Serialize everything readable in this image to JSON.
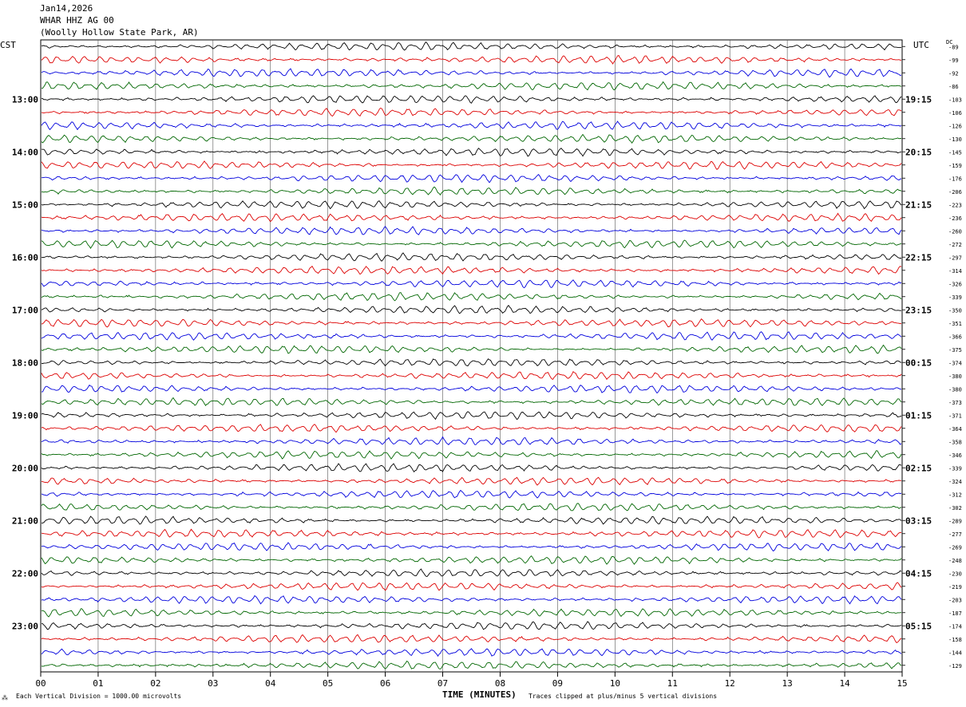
{
  "header": {
    "date": "Jan14,2026",
    "station": "WHAR HHZ AG 00",
    "location": "(Woolly Hollow State Park, AR)"
  },
  "axes": {
    "left_label": "CST",
    "right_label": "UTC",
    "dc_label": "DC",
    "xlabel": "TIME (MINUTES)"
  },
  "footer": {
    "scale_note": "Each Vertical Division = 1000.00 microvolts",
    "clip_note": "Traces clipped at plus/minus 5 vertical divisions"
  },
  "chart_data": {
    "type": "line",
    "title": "WHAR HHZ AG 00",
    "xlabel": "TIME (MINUTES)",
    "x_ticks": [
      "00",
      "01",
      "02",
      "03",
      "04",
      "05",
      "06",
      "07",
      "08",
      "09",
      "10",
      "11",
      "12",
      "13",
      "14",
      "15"
    ],
    "xlim": [
      0,
      15
    ],
    "trace_minutes": 15,
    "trace_colors": [
      "#000000",
      "#dd0000",
      "#0000dd",
      "#006600"
    ],
    "left_time_labels": [
      {
        "row": 4,
        "label": "13:00"
      },
      {
        "row": 8,
        "label": "14:00"
      },
      {
        "row": 12,
        "label": "15:00"
      },
      {
        "row": 16,
        "label": "16:00"
      },
      {
        "row": 20,
        "label": "17:00"
      },
      {
        "row": 24,
        "label": "18:00"
      },
      {
        "row": 28,
        "label": "19:00"
      },
      {
        "row": 32,
        "label": "20:00"
      },
      {
        "row": 36,
        "label": "21:00"
      },
      {
        "row": 40,
        "label": "22:00"
      },
      {
        "row": 44,
        "label": "23:00"
      }
    ],
    "right_time_labels": [
      {
        "row": 4,
        "label": "19:15"
      },
      {
        "row": 8,
        "label": "20:15"
      },
      {
        "row": 12,
        "label": "21:15"
      },
      {
        "row": 16,
        "label": "22:15"
      },
      {
        "row": 20,
        "label": "23:15"
      },
      {
        "row": 24,
        "label": "00:15"
      },
      {
        "row": 28,
        "label": "01:15"
      },
      {
        "row": 32,
        "label": "02:15"
      },
      {
        "row": 36,
        "label": "03:15"
      },
      {
        "row": 40,
        "label": "04:15"
      },
      {
        "row": 44,
        "label": "05:15"
      }
    ],
    "dc_offsets": [
      "-89",
      "-99",
      "-92",
      "-86",
      "-103",
      "-106",
      "-126",
      "-130",
      "-145",
      "-159",
      "-176",
      "-206",
      "-223",
      "-236",
      "-260",
      "-272",
      "-297",
      "-314",
      "-326",
      "-339",
      "-350",
      "-351",
      "-366",
      "-375",
      "-374",
      "-380",
      "-380",
      "-373",
      "-371",
      "-364",
      "-358",
      "-346",
      "-339",
      "-324",
      "-312",
      "-302",
      "-289",
      "-277",
      "-269",
      "-248",
      "-230",
      "-219",
      "-203",
      "-187",
      "-174",
      "-158",
      "-144",
      "-129"
    ]
  }
}
